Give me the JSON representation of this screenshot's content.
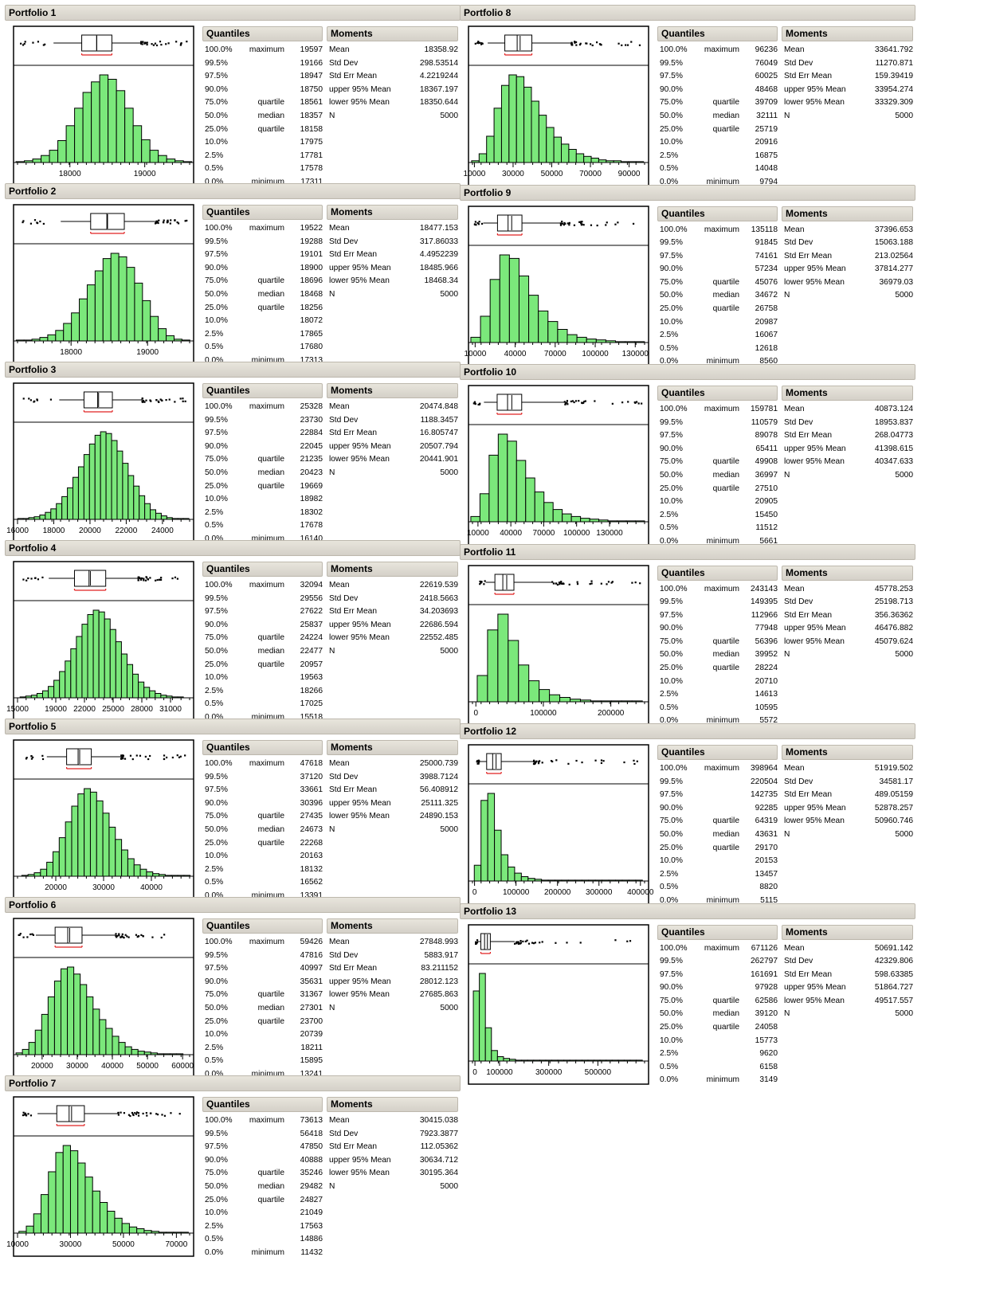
{
  "headers": {
    "quantiles": "Quantiles",
    "moments": "Moments"
  },
  "quantile_pcts": [
    "100.0%",
    "99.5%",
    "97.5%",
    "90.0%",
    "75.0%",
    "50.0%",
    "25.0%",
    "10.0%",
    "2.5%",
    "0.5%",
    "0.0%"
  ],
  "quantile_labels": [
    "maximum",
    "",
    "",
    "",
    "quartile",
    "median",
    "quartile",
    "",
    "",
    "",
    "minimum"
  ],
  "moment_labels": [
    "Mean",
    "Std Dev",
    "Std Err Mean",
    "upper 95% Mean",
    "lower 95% Mean",
    "N"
  ],
  "colors": {
    "bar_fill": "#7be87b",
    "bar_stroke": "#000000",
    "mean_bracket": "#e02020",
    "header_bg": "#d4d0c8"
  },
  "portfolios": [
    {
      "title": "Portfolio 1",
      "quantiles": [
        "19597",
        "19166",
        "18947",
        "18750",
        "18561",
        "18357",
        "18158",
        "17975",
        "17781",
        "17578",
        "17311"
      ],
      "moments": [
        "18358.92",
        "298.53514",
        "4.2219244",
        "18367.197",
        "18350.644",
        "5000"
      ],
      "chart_data": {
        "type": "histogram",
        "x_range": [
          17300,
          19600
        ],
        "ticks": [
          18000,
          19000
        ],
        "box": {
          "min": 17311,
          "q1": 18158,
          "median": 18357,
          "q3": 18561,
          "max": 19597,
          "mean": 18358.92,
          "p2_5": 17781,
          "p97_5": 18947
        },
        "counts": [
          1,
          2,
          4,
          8,
          14,
          25,
          42,
          62,
          80,
          92,
          100,
          95,
          82,
          62,
          42,
          26,
          14,
          8,
          4,
          2,
          1
        ]
      }
    },
    {
      "title": "Portfolio 2",
      "quantiles": [
        "19522",
        "19288",
        "19101",
        "18900",
        "18696",
        "18468",
        "18256",
        "18072",
        "17865",
        "17680",
        "17313"
      ],
      "moments": [
        "18477.153",
        "317.86033",
        "4.4952239",
        "18485.966",
        "18468.34",
        "5000"
      ],
      "chart_data": {
        "type": "histogram",
        "x_range": [
          17300,
          19550
        ],
        "ticks": [
          18000,
          19000
        ],
        "box": {
          "min": 17313,
          "q1": 18256,
          "median": 18468,
          "q3": 18696,
          "max": 19522,
          "mean": 18477.153,
          "p2_5": 17865,
          "p97_5": 19101
        },
        "counts": [
          1,
          1,
          2,
          4,
          7,
          12,
          20,
          32,
          48,
          64,
          80,
          94,
          100,
          96,
          84,
          66,
          46,
          28,
          14,
          6,
          2,
          1
        ]
      }
    },
    {
      "title": "Portfolio 3",
      "quantiles": [
        "25328",
        "23730",
        "22884",
        "22045",
        "21235",
        "20423",
        "19669",
        "18982",
        "18302",
        "17678",
        "16140"
      ],
      "moments": [
        "20474.848",
        "1188.3457",
        "16.805747",
        "20507.794",
        "20441.901",
        "5000"
      ],
      "chart_data": {
        "type": "histogram",
        "x_range": [
          16000,
          25500
        ],
        "ticks": [
          16000,
          18000,
          20000,
          22000,
          24000
        ],
        "box": {
          "min": 16140,
          "q1": 19669,
          "median": 20423,
          "q3": 21235,
          "max": 25328,
          "mean": 20474.848,
          "p2_5": 18302,
          "p97_5": 22884
        },
        "counts": [
          1,
          1,
          2,
          3,
          5,
          8,
          12,
          18,
          26,
          36,
          48,
          60,
          74,
          86,
          96,
          100,
          98,
          90,
          78,
          64,
          50,
          38,
          27,
          18,
          11,
          7,
          4,
          2,
          1,
          1,
          1
        ]
      }
    },
    {
      "title": "Portfolio 4",
      "quantiles": [
        "32094",
        "29556",
        "27622",
        "25837",
        "24224",
        "22477",
        "20957",
        "19563",
        "18266",
        "17025",
        "15518"
      ],
      "moments": [
        "22619.539",
        "2418.5663",
        "34.203693",
        "22686.594",
        "22552.485",
        "5000"
      ],
      "chart_data": {
        "type": "histogram",
        "x_range": [
          15000,
          33000
        ],
        "ticks": [
          15000,
          19000,
          22000,
          25000,
          28000,
          31000
        ],
        "box": {
          "min": 15518,
          "q1": 20957,
          "median": 22477,
          "q3": 24224,
          "max": 32094,
          "mean": 22619.539,
          "p2_5": 18266,
          "p97_5": 27622
        },
        "counts": [
          1,
          2,
          3,
          5,
          8,
          13,
          20,
          30,
          42,
          56,
          70,
          84,
          95,
          100,
          98,
          90,
          78,
          64,
          50,
          38,
          27,
          18,
          12,
          8,
          5,
          3,
          2,
          1,
          1
        ]
      }
    },
    {
      "title": "Portfolio 5",
      "quantiles": [
        "47618",
        "37120",
        "33661",
        "30396",
        "27435",
        "24673",
        "22268",
        "20163",
        "18132",
        "16562",
        "13391"
      ],
      "moments": [
        "25000.739",
        "3988.7124",
        "56.408912",
        "25111.325",
        "24890.153",
        "5000"
      ],
      "chart_data": {
        "type": "histogram",
        "x_range": [
          12000,
          48000
        ],
        "ticks": [
          20000,
          30000,
          40000
        ],
        "box": {
          "min": 13391,
          "q1": 22268,
          "median": 24673,
          "q3": 27435,
          "max": 47618,
          "mean": 25000.739,
          "p2_5": 18132,
          "p97_5": 33661
        },
        "counts": [
          1,
          2,
          4,
          8,
          16,
          28,
          44,
          62,
          80,
          94,
          100,
          96,
          86,
          72,
          56,
          42,
          30,
          20,
          13,
          8,
          5,
          3,
          2,
          1,
          1,
          1,
          1
        ]
      }
    },
    {
      "title": "Portfolio 6",
      "quantiles": [
        "59426",
        "47816",
        "40997",
        "35631",
        "31367",
        "27301",
        "23700",
        "20739",
        "18211",
        "15895",
        "13241"
      ],
      "moments": [
        "27848.993",
        "5883.917",
        "83.211152",
        "28012.123",
        "27685.863",
        "5000"
      ],
      "chart_data": {
        "type": "histogram",
        "x_range": [
          13000,
          62000
        ],
        "ticks": [
          20000,
          30000,
          40000,
          50000,
          60000
        ],
        "box": {
          "min": 13241,
          "q1": 23700,
          "median": 27301,
          "q3": 31367,
          "max": 59426,
          "mean": 27848.993,
          "p2_5": 18211,
          "p97_5": 40997
        },
        "counts": [
          2,
          6,
          14,
          28,
          46,
          66,
          84,
          98,
          100,
          92,
          80,
          66,
          52,
          40,
          30,
          21,
          14,
          9,
          6,
          4,
          3,
          2,
          1,
          1,
          1,
          1
        ]
      }
    },
    {
      "title": "Portfolio 7",
      "quantiles": [
        "73613",
        "56418",
        "47850",
        "40888",
        "35246",
        "29482",
        "24827",
        "21049",
        "17563",
        "14886",
        "11432"
      ],
      "moments": [
        "30415.038",
        "7923.3877",
        "112.05362",
        "30634.712",
        "30195.364",
        "5000"
      ],
      "chart_data": {
        "type": "histogram",
        "x_range": [
          10000,
          75000
        ],
        "ticks": [
          10000,
          30000,
          50000,
          70000
        ],
        "box": {
          "min": 11432,
          "q1": 24827,
          "median": 29482,
          "q3": 35246,
          "max": 73613,
          "mean": 30415.038,
          "p2_5": 17563,
          "p97_5": 47850
        },
        "counts": [
          2,
          8,
          22,
          44,
          70,
          92,
          100,
          94,
          80,
          64,
          48,
          35,
          25,
          17,
          11,
          7,
          5,
          3,
          2,
          1,
          1,
          1,
          1
        ]
      }
    },
    {
      "title": "Portfolio 8",
      "quantiles": [
        "96236",
        "76049",
        "60025",
        "48468",
        "39709",
        "32111",
        "25719",
        "20916",
        "16875",
        "14048",
        "9794"
      ],
      "moments": [
        "33641.792",
        "11270.871",
        "159.39419",
        "33954.274",
        "33329.309",
        "5000"
      ],
      "chart_data": {
        "type": "histogram",
        "x_range": [
          9000,
          98000
        ],
        "ticks": [
          10000,
          30000,
          50000,
          70000,
          90000
        ],
        "box": {
          "min": 9794,
          "q1": 25719,
          "median": 32111,
          "q3": 39709,
          "max": 96236,
          "mean": 33641.792,
          "p2_5": 16875,
          "p97_5": 60025
        },
        "counts": [
          2,
          10,
          30,
          62,
          88,
          100,
          98,
          86,
          70,
          54,
          40,
          29,
          21,
          15,
          10,
          7,
          5,
          3,
          2,
          2,
          1,
          1,
          1
        ]
      }
    },
    {
      "title": "Portfolio 9",
      "quantiles": [
        "135118",
        "91845",
        "74161",
        "57234",
        "45076",
        "34672",
        "26758",
        "20987",
        "16067",
        "12618",
        "8560"
      ],
      "moments": [
        "37396.653",
        "15063.188",
        "213.02564",
        "37814.277",
        "36979.03",
        "5000"
      ],
      "chart_data": {
        "type": "histogram",
        "x_range": [
          8000,
          137000
        ],
        "ticks": [
          10000,
          40000,
          70000,
          100000,
          130000
        ],
        "box": {
          "min": 8560,
          "q1": 26758,
          "median": 34672,
          "q3": 45076,
          "max": 135118,
          "mean": 37396.653,
          "p2_5": 16067,
          "p97_5": 74161
        },
        "counts": [
          6,
          30,
          72,
          100,
          96,
          76,
          54,
          36,
          24,
          15,
          9,
          6,
          4,
          3,
          2,
          1,
          1,
          1
        ]
      }
    },
    {
      "title": "Portfolio 10",
      "quantiles": [
        "159781",
        "110579",
        "89078",
        "65411",
        "49908",
        "36997",
        "27510",
        "20905",
        "15450",
        "11512",
        "5661"
      ],
      "moments": [
        "40873.124",
        "18953.837",
        "268.04773",
        "41398.615",
        "40347.633",
        "5000"
      ],
      "chart_data": {
        "type": "histogram",
        "x_range": [
          5000,
          162000
        ],
        "ticks": [
          10000,
          40000,
          70000,
          100000,
          130000
        ],
        "box": {
          "min": 5661,
          "q1": 27510,
          "median": 36997,
          "q3": 49908,
          "max": 159781,
          "mean": 40873.124,
          "p2_5": 15450,
          "p97_5": 89078
        },
        "counts": [
          6,
          32,
          76,
          100,
          92,
          70,
          50,
          34,
          22,
          14,
          9,
          6,
          4,
          3,
          2,
          1,
          1,
          1,
          1
        ]
      }
    },
    {
      "title": "Portfolio 11",
      "quantiles": [
        "243143",
        "149395",
        "112966",
        "77948",
        "56396",
        "39952",
        "28224",
        "20710",
        "14613",
        "10595",
        "5572"
      ],
      "moments": [
        "45778.253",
        "25198.713",
        "356.36362",
        "46476.882",
        "45079.624",
        "5000"
      ],
      "chart_data": {
        "type": "histogram",
        "x_range": [
          -5000,
          250000
        ],
        "ticks": [
          0,
          100000,
          200000
        ],
        "box": {
          "min": 5572,
          "q1": 28224,
          "median": 39952,
          "q3": 56396,
          "max": 243143,
          "mean": 45778.253,
          "p2_5": 14613,
          "p97_5": 112966
        },
        "counts": [
          30,
          82,
          100,
          70,
          42,
          24,
          14,
          8,
          5,
          3,
          2,
          1,
          1,
          1,
          1,
          1
        ]
      }
    },
    {
      "title": "Portfolio 12",
      "quantiles": [
        "398964",
        "220504",
        "142735",
        "92285",
        "64319",
        "43631",
        "29170",
        "20153",
        "13457",
        "8820",
        "5115"
      ],
      "moments": [
        "51919.502",
        "34581.17",
        "489.05159",
        "52878.257",
        "50960.746",
        "5000"
      ],
      "chart_data": {
        "type": "histogram",
        "x_range": [
          -5000,
          410000
        ],
        "ticks": [
          0,
          100000,
          200000,
          300000,
          400000
        ],
        "box": {
          "min": 5115,
          "q1": 29170,
          "median": 43631,
          "q3": 64319,
          "max": 398964,
          "mean": 51919.502,
          "p2_5": 13457,
          "p97_5": 142735
        },
        "counts": [
          18,
          92,
          100,
          58,
          30,
          16,
          9,
          5,
          3,
          2,
          1,
          1,
          1,
          1,
          1,
          1,
          1,
          1,
          1,
          1,
          1,
          1,
          1,
          1,
          1
        ]
      }
    },
    {
      "title": "Portfolio 13",
      "quantiles": [
        "671126",
        "262797",
        "161691",
        "97928",
        "62586",
        "39120",
        "24058",
        "15773",
        "9620",
        "6158",
        "3149"
      ],
      "moments": [
        "50691.142",
        "42329.806",
        "598.63385",
        "51864.727",
        "49517.557",
        "5000"
      ],
      "chart_data": {
        "type": "histogram",
        "x_range": [
          -10000,
          690000
        ],
        "ticks": [
          0,
          100000,
          300000,
          500000
        ],
        "box": {
          "min": 3149,
          "q1": 24058,
          "median": 39120,
          "q3": 62586,
          "max": 671126,
          "mean": 50691.142,
          "p2_5": 9620,
          "p97_5": 161691
        },
        "counts": [
          80,
          100,
          38,
          12,
          5,
          3,
          2,
          1,
          1,
          1,
          1,
          1,
          1,
          1,
          1,
          1,
          1,
          1,
          1,
          1,
          1,
          1,
          1,
          1,
          1,
          1,
          1,
          1
        ]
      }
    }
  ]
}
